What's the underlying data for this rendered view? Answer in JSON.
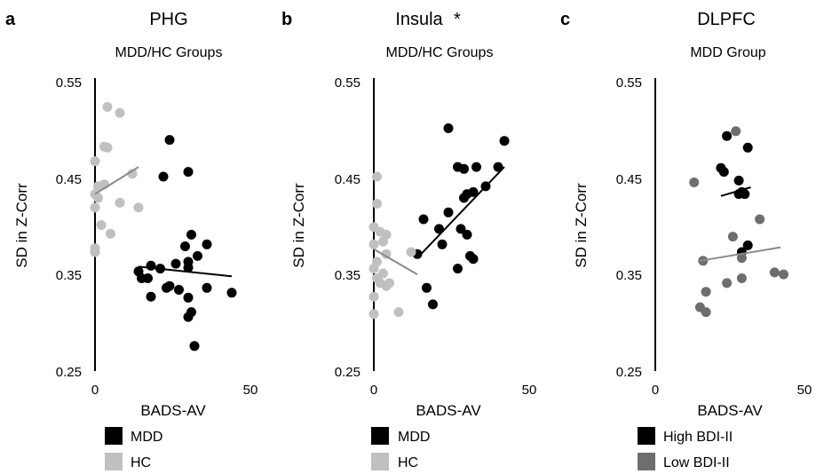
{
  "chart_data": [
    {
      "type": "scatter",
      "panel_label": "a",
      "title": "PHG",
      "subtitle": "MDD/HC Groups",
      "xlabel": "BADS-AV",
      "ylabel": "SD in Z-Corr",
      "xlim": [
        0,
        50
      ],
      "ylim": [
        0.25,
        0.55
      ],
      "x_ticks": [
        "0",
        "50"
      ],
      "y_ticks": [
        "0.25",
        "0.35",
        "0.45",
        "0.55"
      ],
      "grid": false,
      "legend": {
        "placement": "bottom"
      },
      "series": [
        {
          "name": "MDD",
          "color": "#000000",
          "points": [
            [
              24,
              0.488
            ],
            [
              22,
              0.45
            ],
            [
              30,
              0.455
            ],
            [
              31,
              0.39
            ],
            [
              36,
              0.38
            ],
            [
              29,
              0.378
            ],
            [
              33,
              0.368
            ],
            [
              30,
              0.362
            ],
            [
              14,
              0.352
            ],
            [
              18,
              0.358
            ],
            [
              21,
              0.355
            ],
            [
              26,
              0.36
            ],
            [
              30,
              0.356
            ],
            [
              15,
              0.345
            ],
            [
              17,
              0.345
            ],
            [
              24,
              0.337
            ],
            [
              27,
              0.333
            ],
            [
              30,
              0.325
            ],
            [
              31,
              0.31
            ],
            [
              30,
              0.305
            ],
            [
              18,
              0.326
            ],
            [
              23,
              0.335
            ],
            [
              36,
              0.335
            ],
            [
              44,
              0.33
            ],
            [
              32,
              0.275
            ]
          ],
          "trend": [
            [
              14,
              0.357
            ],
            [
              44,
              0.347
            ]
          ]
        },
        {
          "name": "HC",
          "color": "#c0c0c0",
          "points": [
            [
              4,
              0.522
            ],
            [
              8,
              0.516
            ],
            [
              3,
              0.481
            ],
            [
              4,
              0.48
            ],
            [
              0,
              0.466
            ],
            [
              12,
              0.453
            ],
            [
              1,
              0.44
            ],
            [
              3,
              0.442
            ],
            [
              0,
              0.432
            ],
            [
              1,
              0.428
            ],
            [
              8,
              0.423
            ],
            [
              0,
              0.418
            ],
            [
              14,
              0.418
            ],
            [
              2,
              0.4
            ],
            [
              5,
              0.391
            ],
            [
              0,
              0.376
            ],
            [
              0,
              0.372
            ]
          ],
          "trend": [
            [
              0,
              0.432
            ],
            [
              14,
              0.46
            ]
          ]
        }
      ]
    },
    {
      "type": "scatter",
      "panel_label": "b",
      "title": "Insula",
      "title_marker": "*",
      "subtitle": "MDD/HC Groups",
      "xlabel": "BADS-AV",
      "ylabel": "SD in Z-Corr",
      "xlim": [
        0,
        50
      ],
      "ylim": [
        0.25,
        0.55
      ],
      "x_ticks": [
        "0",
        "50"
      ],
      "y_ticks": [
        "0.25",
        "0.35",
        "0.45",
        "0.55"
      ],
      "grid": false,
      "legend": {
        "placement": "bottom"
      },
      "series": [
        {
          "name": "MDD",
          "color": "#000000",
          "points": [
            [
              24,
              0.5
            ],
            [
              42,
              0.487
            ],
            [
              27,
              0.46
            ],
            [
              29,
              0.458
            ],
            [
              33,
              0.46
            ],
            [
              40,
              0.46
            ],
            [
              36,
              0.44
            ],
            [
              30,
              0.432
            ],
            [
              32,
              0.434
            ],
            [
              29,
              0.428
            ],
            [
              24,
              0.413
            ],
            [
              16,
              0.406
            ],
            [
              21,
              0.396
            ],
            [
              28,
              0.396
            ],
            [
              30,
              0.39
            ],
            [
              22,
              0.38
            ],
            [
              14,
              0.37
            ],
            [
              31,
              0.368
            ],
            [
              32,
              0.365
            ],
            [
              27,
              0.355
            ],
            [
              17,
              0.335
            ],
            [
              19,
              0.318
            ]
          ],
          "trend": [
            [
              14,
              0.366
            ],
            [
              42,
              0.46
            ]
          ]
        },
        {
          "name": "HC",
          "color": "#c0c0c0",
          "points": [
            [
              1,
              0.45
            ],
            [
              1,
              0.422
            ],
            [
              0,
              0.398
            ],
            [
              2,
              0.393
            ],
            [
              4,
              0.39
            ],
            [
              0,
              0.38
            ],
            [
              3,
              0.383
            ],
            [
              12,
              0.372
            ],
            [
              1,
              0.362
            ],
            [
              4,
              0.37
            ],
            [
              0,
              0.355
            ],
            [
              3,
              0.35
            ],
            [
              1,
              0.345
            ],
            [
              5,
              0.34
            ],
            [
              2,
              0.34
            ],
            [
              4,
              0.337
            ],
            [
              0,
              0.326
            ],
            [
              8,
              0.31
            ],
            [
              0,
              0.308
            ]
          ],
          "trend": [
            [
              0,
              0.375
            ],
            [
              14,
              0.349
            ]
          ]
        }
      ]
    },
    {
      "type": "scatter",
      "panel_label": "c",
      "title": "DLPFC",
      "subtitle": "MDD Group",
      "xlabel": "BADS-AV",
      "ylabel": "SD in Z-Corr",
      "xlim": [
        0,
        50
      ],
      "ylim": [
        0.25,
        0.55
      ],
      "x_ticks": [
        "0",
        "50"
      ],
      "y_ticks": [
        "0.25",
        "0.35",
        "0.45",
        "0.55"
      ],
      "grid": false,
      "legend": {
        "placement": "bottom"
      },
      "series": [
        {
          "name": "High BDI-II",
          "color": "#000000",
          "points": [
            [
              24,
              0.492
            ],
            [
              31,
              0.48
            ],
            [
              22,
              0.459
            ],
            [
              23,
              0.455
            ],
            [
              28,
              0.446
            ],
            [
              29,
              0.434
            ],
            [
              30,
              0.432
            ],
            [
              28,
              0.432
            ],
            [
              31,
              0.379
            ],
            [
              29,
              0.372
            ]
          ],
          "trend": [
            [
              22,
              0.43
            ],
            [
              32,
              0.439
            ]
          ]
        },
        {
          "name": "Low BDI-II",
          "color": "#6e6e6e",
          "points": [
            [
              27,
              0.497
            ],
            [
              13,
              0.444
            ],
            [
              35,
              0.406
            ],
            [
              26,
              0.388
            ],
            [
              16,
              0.363
            ],
            [
              29,
              0.366
            ],
            [
              40,
              0.351
            ],
            [
              43,
              0.349
            ],
            [
              24,
              0.34
            ],
            [
              29,
              0.345
            ],
            [
              17,
              0.331
            ],
            [
              15,
              0.315
            ],
            [
              17,
              0.31
            ]
          ],
          "trend": [
            [
              15,
              0.363
            ],
            [
              42,
              0.377
            ]
          ]
        }
      ]
    }
  ]
}
